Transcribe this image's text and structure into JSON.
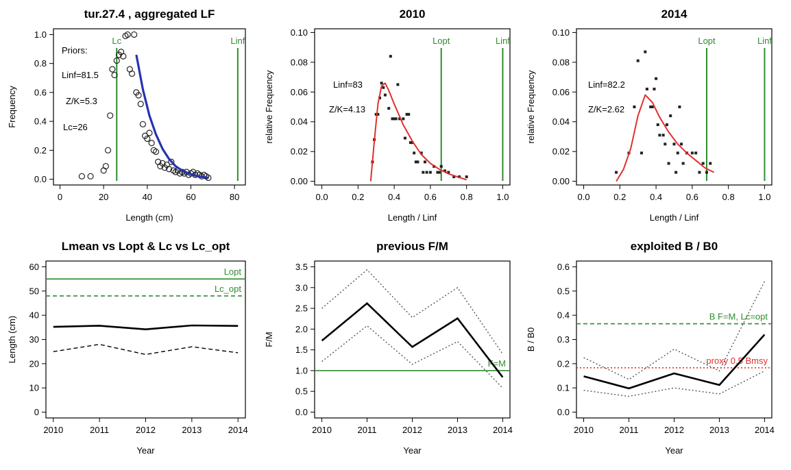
{
  "chart_data": [
    {
      "type": "scatter",
      "title": "tur.27.4 , aggregated LF",
      "xlabel": "Length (cm)",
      "ylabel": "Frequency",
      "xlim": [
        -3,
        85
      ],
      "ylim": [
        -0.04,
        1.04
      ],
      "xticks": [
        "0",
        "20",
        "40",
        "60",
        "80"
      ],
      "yticks": [
        "0.0",
        "0.2",
        "0.4",
        "0.6",
        "0.8",
        "1.0"
      ],
      "annotations": [
        "Priors:",
        "Linf=81.5",
        "Z/K=5.3",
        "Lc=26"
      ],
      "vlines": [
        {
          "label": "Lc",
          "x": 26,
          "color": "#2e8b2e"
        },
        {
          "label": "Linf",
          "x": 81.5,
          "color": "#2e8b2e"
        }
      ],
      "points": {
        "x": [
          10,
          14,
          20,
          21,
          22,
          23,
          24,
          25,
          26,
          27,
          28,
          29,
          30,
          31,
          32,
          33,
          34,
          35,
          36,
          37,
          38,
          39,
          40,
          41,
          42,
          43,
          44,
          45,
          46,
          47,
          48,
          49,
          50,
          51,
          52,
          53,
          54,
          55,
          56,
          57,
          58,
          59,
          60,
          61,
          62,
          63,
          64,
          65,
          66,
          67,
          68
        ],
        "y": [
          0.02,
          0.02,
          0.06,
          0.09,
          0.2,
          0.44,
          0.76,
          0.72,
          0.82,
          0.86,
          0.88,
          0.85,
          0.99,
          1.0,
          0.76,
          0.73,
          1.0,
          0.6,
          0.58,
          0.52,
          0.38,
          0.3,
          0.28,
          0.32,
          0.25,
          0.2,
          0.19,
          0.12,
          0.09,
          0.11,
          0.08,
          0.1,
          0.07,
          0.12,
          0.06,
          0.05,
          0.06,
          0.04,
          0.05,
          0.04,
          0.05,
          0.03,
          0.04,
          0.05,
          0.03,
          0.04,
          0.03,
          0.02,
          0.03,
          0.02,
          0.01
        ]
      },
      "fit": {
        "color": "#2633b0",
        "x": [
          35,
          38,
          41,
          44,
          47,
          50,
          53,
          56,
          59,
          62,
          65,
          68
        ],
        "y": [
          0.86,
          0.62,
          0.44,
          0.31,
          0.21,
          0.14,
          0.09,
          0.06,
          0.04,
          0.025,
          0.015,
          0.01
        ]
      }
    },
    {
      "type": "scatter",
      "title": "2010",
      "xlabel": "Length / Linf",
      "ylabel": "relative Frequency",
      "xlim": [
        -0.04,
        1.04
      ],
      "ylim": [
        -0.0025,
        0.1025
      ],
      "xticks": [
        "0.0",
        "0.2",
        "0.4",
        "0.6",
        "0.8",
        "1.0"
      ],
      "yticks": [
        "0.00",
        "0.02",
        "0.04",
        "0.06",
        "0.08",
        "0.10"
      ],
      "annotations": [
        "Linf=83",
        "Z/K=4.13"
      ],
      "vlines": [
        {
          "label": "Lopt",
          "x": 0.66,
          "color": "#2e8b2e"
        },
        {
          "label": "Linf",
          "x": 1.0,
          "color": "#2e8b2e"
        }
      ],
      "points": {
        "x": [
          0.28,
          0.29,
          0.3,
          0.31,
          0.32,
          0.33,
          0.34,
          0.35,
          0.37,
          0.38,
          0.39,
          0.4,
          0.41,
          0.42,
          0.43,
          0.45,
          0.46,
          0.47,
          0.48,
          0.49,
          0.5,
          0.51,
          0.52,
          0.53,
          0.55,
          0.56,
          0.57,
          0.58,
          0.6,
          0.62,
          0.64,
          0.65,
          0.66,
          0.68,
          0.7,
          0.73,
          0.76,
          0.8
        ],
        "y": [
          0.013,
          0.028,
          0.045,
          0.045,
          0.056,
          0.066,
          0.063,
          0.058,
          0.049,
          0.084,
          0.042,
          0.042,
          0.042,
          0.065,
          0.042,
          0.042,
          0.029,
          0.045,
          0.045,
          0.026,
          0.026,
          0.019,
          0.013,
          0.013,
          0.019,
          0.006,
          0.013,
          0.006,
          0.006,
          0.01,
          0.006,
          0.006,
          0.01,
          0.007,
          0.006,
          0.003,
          0.003,
          0.003
        ]
      },
      "fit": {
        "color": "#e0302c",
        "x": [
          0.27,
          0.29,
          0.31,
          0.33,
          0.35,
          0.37,
          0.4,
          0.45,
          0.5,
          0.55,
          0.6,
          0.65,
          0.7,
          0.75,
          0.8
        ],
        "y": [
          0.0,
          0.027,
          0.052,
          0.064,
          0.066,
          0.061,
          0.052,
          0.038,
          0.027,
          0.018,
          0.012,
          0.008,
          0.005,
          0.003,
          0.001
        ]
      }
    },
    {
      "type": "scatter",
      "title": "2014",
      "xlabel": "Length / Linf",
      "ylabel": "relative Frequency",
      "xlim": [
        -0.04,
        1.04
      ],
      "ylim": [
        -0.0025,
        0.1025
      ],
      "xticks": [
        "0.0",
        "0.2",
        "0.4",
        "0.6",
        "0.8",
        "1.0"
      ],
      "yticks": [
        "0.00",
        "0.02",
        "0.04",
        "0.06",
        "0.08",
        "0.10"
      ],
      "annotations": [
        "Linf=82.2",
        "Z/K=2.62"
      ],
      "vlines": [
        {
          "label": "Lopt",
          "x": 0.68,
          "color": "#2e8b2e"
        },
        {
          "label": "Linf",
          "x": 1.0,
          "color": "#2e8b2e"
        }
      ],
      "points": {
        "x": [
          0.18,
          0.25,
          0.28,
          0.3,
          0.32,
          0.34,
          0.35,
          0.37,
          0.38,
          0.39,
          0.4,
          0.41,
          0.42,
          0.44,
          0.45,
          0.46,
          0.47,
          0.48,
          0.5,
          0.51,
          0.52,
          0.53,
          0.54,
          0.55,
          0.57,
          0.6,
          0.62,
          0.64,
          0.66,
          0.68,
          0.7
        ],
        "y": [
          0.006,
          0.019,
          0.05,
          0.081,
          0.019,
          0.087,
          0.062,
          0.05,
          0.05,
          0.062,
          0.069,
          0.038,
          0.031,
          0.031,
          0.025,
          0.038,
          0.012,
          0.044,
          0.025,
          0.006,
          0.019,
          0.05,
          0.025,
          0.012,
          0.019,
          0.019,
          0.019,
          0.006,
          0.012,
          0.006,
          0.012
        ]
      },
      "fit": {
        "color": "#e0302c",
        "x": [
          0.18,
          0.22,
          0.26,
          0.3,
          0.34,
          0.38,
          0.42,
          0.47,
          0.52,
          0.57,
          0.62,
          0.67,
          0.72
        ],
        "y": [
          0.0,
          0.008,
          0.022,
          0.044,
          0.058,
          0.053,
          0.043,
          0.033,
          0.025,
          0.019,
          0.014,
          0.009,
          0.006
        ]
      }
    },
    {
      "type": "line",
      "title": "Lmean vs Lopt & Lc vs Lc_opt",
      "xlabel": "Year",
      "ylabel": "Length (cm)",
      "x": [
        2010,
        2011,
        2012,
        2013,
        2014
      ],
      "xticks": [
        "2010",
        "2011",
        "2012",
        "2013",
        "2014"
      ],
      "yticks": [
        "0",
        "10",
        "20",
        "30",
        "40",
        "50",
        "60"
      ],
      "xlim": [
        2009.84,
        2014.16
      ],
      "ylim": [
        -2.4,
        62.4
      ],
      "series": [
        {
          "style": "solid-bold",
          "color": "#000000",
          "values": [
            35.2,
            35.7,
            34.2,
            35.8,
            35.6
          ]
        },
        {
          "style": "dashed",
          "color": "#000000",
          "values": [
            25.0,
            28.0,
            23.8,
            27.0,
            24.5
          ]
        }
      ],
      "hlines": [
        {
          "label": "Lopt",
          "y": 55,
          "style": "solid",
          "color": "#2e8b2e"
        },
        {
          "label": "Lc_opt",
          "y": 48,
          "style": "dashed",
          "color": "#2e8b2e"
        }
      ]
    },
    {
      "type": "line",
      "title": "previous F/M",
      "xlabel": "Year",
      "ylabel": "F/M",
      "x": [
        2010,
        2011,
        2012,
        2013,
        2014
      ],
      "xticks": [
        "2010",
        "2011",
        "2012",
        "2013",
        "2014"
      ],
      "yticks": [
        "0.0",
        "0.5",
        "1.0",
        "1.5",
        "2.0",
        "2.5",
        "3.0",
        "3.5"
      ],
      "xlim": [
        2009.84,
        2014.16
      ],
      "ylim": [
        -0.14,
        3.64
      ],
      "series": [
        {
          "style": "solid-bold",
          "color": "#000000",
          "values": [
            1.72,
            2.62,
            1.57,
            2.26,
            0.84
          ]
        },
        {
          "style": "dotted",
          "color": "#555555",
          "values": [
            2.5,
            3.43,
            2.28,
            3.0,
            1.4
          ]
        },
        {
          "style": "dotted",
          "color": "#555555",
          "values": [
            1.22,
            2.08,
            1.15,
            1.7,
            0.58
          ]
        }
      ],
      "hlines": [
        {
          "label": "F=M",
          "y": 1.0,
          "style": "solid",
          "color": "#2e8b2e"
        }
      ]
    },
    {
      "type": "line",
      "title": "exploited B / B0",
      "xlabel": "Year",
      "ylabel": "B / B0",
      "x": [
        2010,
        2011,
        2012,
        2013,
        2014
      ],
      "xticks": [
        "2010",
        "2011",
        "2012",
        "2013",
        "2014"
      ],
      "yticks": [
        "0.0",
        "0.1",
        "0.2",
        "0.3",
        "0.4",
        "0.5",
        "0.6"
      ],
      "xlim": [
        2009.84,
        2014.16
      ],
      "ylim": [
        -0.024,
        0.624
      ],
      "series": [
        {
          "style": "solid-bold",
          "color": "#000000",
          "values": [
            0.148,
            0.098,
            0.16,
            0.112,
            0.32
          ]
        },
        {
          "style": "dotted",
          "color": "#555555",
          "values": [
            0.225,
            0.135,
            0.26,
            0.17,
            0.54
          ]
        },
        {
          "style": "dotted",
          "color": "#555555",
          "values": [
            0.09,
            0.065,
            0.1,
            0.075,
            0.17
          ]
        }
      ],
      "hlines": [
        {
          "label": "B F=M, Lc=opt",
          "y": 0.365,
          "style": "dashed",
          "color": "#2e8b2e"
        },
        {
          "label": "proxy 0.5 Bmsy",
          "y": 0.183,
          "style": "dotted",
          "color": "#e0302c"
        }
      ]
    }
  ]
}
